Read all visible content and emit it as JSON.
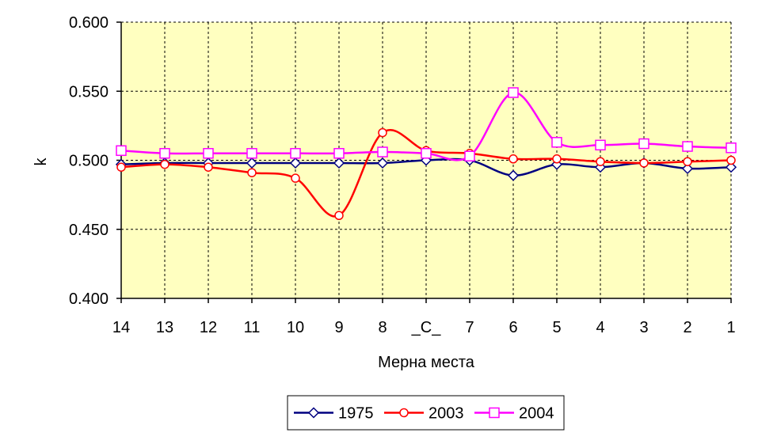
{
  "chart_data": {
    "type": "line",
    "xlabel": "Мерна места",
    "ylabel": "k",
    "categories": [
      "14",
      "13",
      "12",
      "11",
      "10",
      "9",
      "8",
      "_C_",
      "7",
      "6",
      "5",
      "4",
      "3",
      "2",
      "1"
    ],
    "yticks": [
      "0.400",
      "0.450",
      "0.500",
      "0.550",
      "0.600"
    ],
    "ylim": [
      0.4,
      0.6
    ],
    "grid": "dashed",
    "plot_background": "#FFFFC0",
    "legend_position": "bottom",
    "series": [
      {
        "name": "1975",
        "color": "#000080",
        "marker": "diamond",
        "values": [
          0.497,
          0.498,
          0.498,
          0.498,
          0.498,
          0.498,
          0.498,
          0.5,
          0.5,
          0.489,
          0.497,
          0.495,
          0.498,
          0.494,
          0.495
        ]
      },
      {
        "name": "2003",
        "color": "#FF0000",
        "marker": "circle",
        "values": [
          0.495,
          0.497,
          0.495,
          0.491,
          0.487,
          0.46,
          0.52,
          0.507,
          0.505,
          0.501,
          0.501,
          0.499,
          0.498,
          0.499,
          0.5
        ]
      },
      {
        "name": "2004",
        "color": "#FF00FF",
        "marker": "square",
        "values": [
          0.507,
          0.505,
          0.505,
          0.505,
          0.505,
          0.505,
          0.506,
          0.505,
          0.503,
          0.549,
          0.513,
          0.511,
          0.512,
          0.51,
          0.509
        ]
      }
    ]
  }
}
